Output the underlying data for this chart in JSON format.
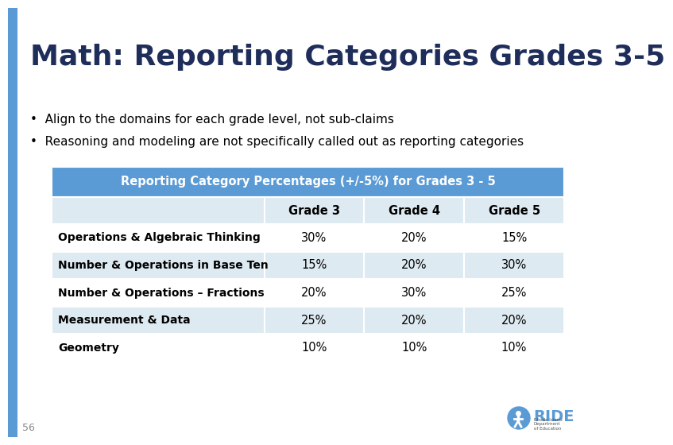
{
  "title": "Math: Reporting Categories Grades 3-5",
  "bullet1": "Align to the domains for each grade level, not sub-claims",
  "bullet2": "Reasoning and modeling are not specifically called out as reporting categories",
  "table_header": "Reporting Category Percentages (+/-5%) for Grades 3 - 5",
  "col_headers": [
    "",
    "Grade 3",
    "Grade 4",
    "Grade 5"
  ],
  "rows": [
    [
      "Operations & Algebraic Thinking",
      "30%",
      "20%",
      "15%"
    ],
    [
      "Number & Operations in Base Ten",
      "15%",
      "20%",
      "30%"
    ],
    [
      "Number & Operations – Fractions",
      "20%",
      "30%",
      "25%"
    ],
    [
      "Measurement & Data",
      "25%",
      "20%",
      "20%"
    ],
    [
      "Geometry",
      "10%",
      "10%",
      "10%"
    ]
  ],
  "header_bg": "#5B9BD5",
  "header_text": "#FFFFFF",
  "col_header_bg": "#DEEAF1",
  "row_bg_odd": "#FFFFFF",
  "row_bg_even": "#DEEAF1",
  "slide_bg": "#FFFFFF",
  "left_bar_color": "#5B9BD5",
  "footer_number": "56",
  "title_color": "#1F2D5A",
  "body_text_color": "#000000"
}
